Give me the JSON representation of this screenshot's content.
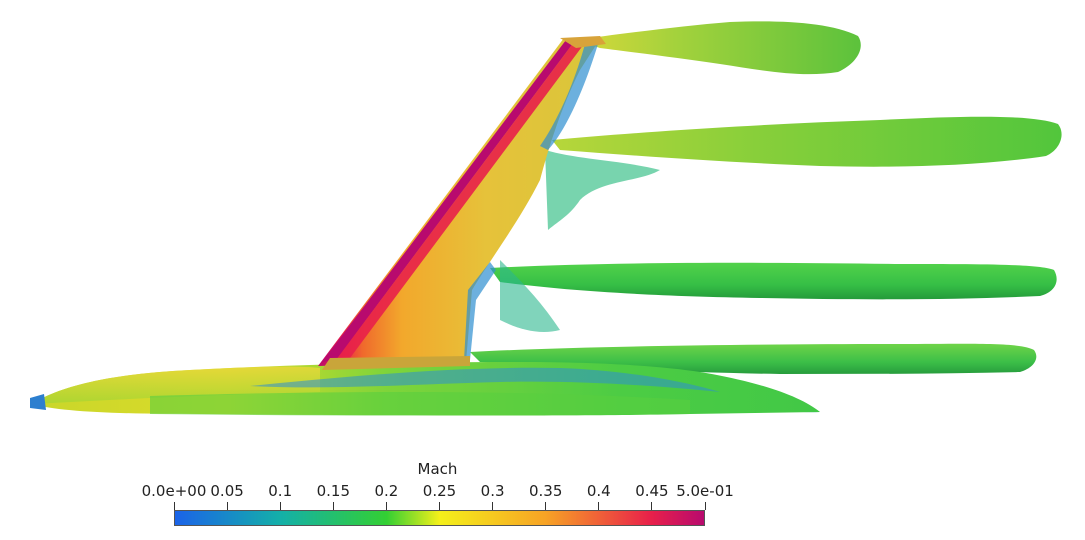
{
  "scene": {
    "description_icon": "cfd-aircraft-wing-vortex-icon",
    "colors": {
      "c000": "#1b63e8",
      "c010": "#14b0a8",
      "c020": "#33cf33",
      "c025": "#f4f01a",
      "c035": "#f7a325",
      "c045": "#e8204a",
      "c050": "#b80a6e"
    }
  },
  "colorbar": {
    "title": "Mach",
    "min": 0.0,
    "max": 0.5,
    "tick_labels": [
      "0.0e+00",
      "0.05",
      "0.1",
      "0.15",
      "0.2",
      "0.25",
      "0.3",
      "0.35",
      "0.4",
      "0.45",
      "5.0e-01"
    ],
    "tick_values": [
      0.0,
      0.05,
      0.1,
      0.15,
      0.2,
      0.25,
      0.3,
      0.35,
      0.4,
      0.45,
      0.5
    ]
  }
}
